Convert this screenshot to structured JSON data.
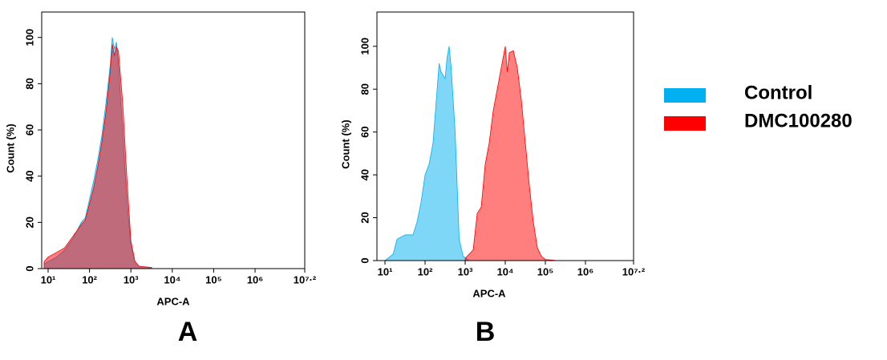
{
  "chart_data": [
    {
      "type": "area",
      "label": "A",
      "x_label": "APC-A",
      "y_label": "Count (%)",
      "xscale": "log",
      "xlim": [
        7,
        15848932
      ],
      "ylim": [
        0,
        111
      ],
      "xticks": [
        {
          "value": 10,
          "label": "10¹"
        },
        {
          "value": 100,
          "label": "10²"
        },
        {
          "value": 1000,
          "label": "10³"
        },
        {
          "value": 10000,
          "label": "10⁴"
        },
        {
          "value": 100000,
          "label": "10⁵"
        },
        {
          "value": 1000000,
          "label": "10⁶"
        },
        {
          "value": 15848932,
          "label": "10⁷·²"
        }
      ],
      "yticks": [
        0,
        20,
        40,
        60,
        80,
        100
      ],
      "series": [
        {
          "color": "#00b0f0",
          "x": [
            8,
            10,
            16,
            25,
            40,
            63,
            79,
            100,
            126,
            158,
            200,
            251,
            316,
            355,
            398,
            447,
            501,
            631,
            794,
            1000,
            1259,
            1585,
            3162
          ],
          "values": [
            2,
            3,
            5,
            8,
            13,
            20,
            22,
            30,
            38,
            47,
            58,
            72,
            88,
            100,
            95,
            98,
            88,
            60,
            30,
            10,
            3,
            1,
            0.5
          ]
        },
        {
          "color": "#ff0000",
          "x": [
            8,
            10,
            16,
            25,
            40,
            63,
            79,
            100,
            126,
            158,
            200,
            251,
            316,
            355,
            398,
            447,
            501,
            631,
            794,
            1000,
            1259,
            1585,
            3162
          ],
          "values": [
            3,
            5,
            7,
            9,
            14,
            19,
            21,
            28,
            35,
            44,
            55,
            68,
            85,
            97,
            92,
            96,
            94,
            72,
            40,
            12,
            3,
            1,
            0.5
          ]
        }
      ]
    },
    {
      "type": "area",
      "label": "B",
      "x_label": "APC-A",
      "y_label": "Count (%)",
      "xscale": "log",
      "xlim": [
        6.3,
        15848932
      ],
      "ylim": [
        0,
        116
      ],
      "xticks": [
        {
          "value": 10,
          "label": "10¹"
        },
        {
          "value": 100,
          "label": "10²"
        },
        {
          "value": 1000,
          "label": "10³"
        },
        {
          "value": 10000,
          "label": "10⁴"
        },
        {
          "value": 100000,
          "label": "10⁵"
        },
        {
          "value": 1000000,
          "label": "10⁶"
        },
        {
          "value": 15848932,
          "label": "10⁷·²"
        }
      ],
      "yticks": [
        0,
        20,
        40,
        60,
        80,
        100
      ],
      "series": [
        {
          "name": "Control",
          "color": "#00b0f0",
          "x": [
            10,
            16,
            20,
            32,
            50,
            63,
            79,
            100,
            126,
            158,
            200,
            224,
            251,
            316,
            355,
            398,
            447,
            562,
            708,
            891,
            1259
          ],
          "values": [
            0,
            3,
            10,
            12,
            12,
            18,
            27,
            40,
            45,
            55,
            80,
            92,
            88,
            85,
            95,
            100,
            90,
            60,
            10,
            2,
            0
          ]
        },
        {
          "name": "DMC100280",
          "color": "#ff0000",
          "x": [
            1000,
            1585,
            1995,
            2512,
            3162,
            3981,
            5012,
            6310,
            7943,
            10000,
            11220,
            12589,
            15849,
            19953,
            25119,
            31623,
            39811,
            50119,
            63096,
            79433,
            100000,
            199526
          ],
          "values": [
            1,
            5,
            22,
            25,
            45,
            55,
            70,
            80,
            90,
            100,
            88,
            97,
            98,
            90,
            75,
            55,
            35,
            18,
            6,
            2,
            0.5,
            0
          ]
        }
      ]
    }
  ]
}
